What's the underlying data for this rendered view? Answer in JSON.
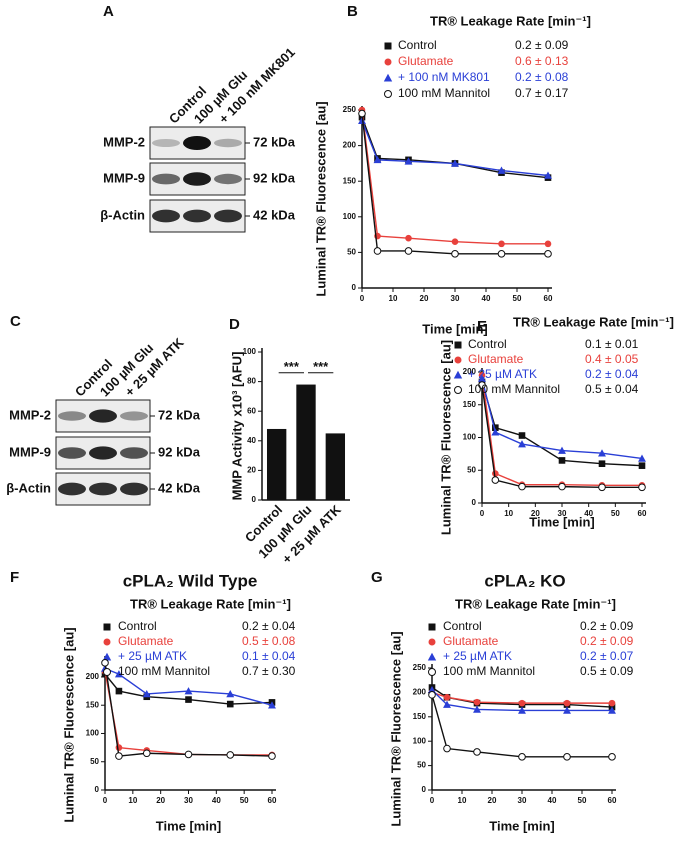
{
  "panels": [
    "A",
    "B",
    "C",
    "D",
    "E",
    "F",
    "G"
  ],
  "blots": [
    {
      "lanes": [
        "Control",
        "100 µM Glu",
        "+ 100 nM MK801"
      ],
      "rows": [
        {
          "label": "MMP-2",
          "size": "72 kDa"
        },
        {
          "label": "MMP-9",
          "size": "92 kDa"
        },
        {
          "label": "β-Actin",
          "size": "42 kDa"
        }
      ]
    },
    {
      "lanes": [
        "Control",
        "100 µM Glu",
        "+ 25 µM ATK"
      ],
      "rows": [
        {
          "label": "MMP-2",
          "size": "72 kDa"
        },
        {
          "label": "MMP-9",
          "size": "92 kDa"
        },
        {
          "label": "β-Actin",
          "size": "42 kDa"
        }
      ]
    }
  ],
  "chart_data": [
    {
      "type": "line",
      "legend_title": "TR® Leakage Rate [min⁻¹]",
      "x_label": "Time [min]",
      "y_label": "Luminal TR® Fluorescence [au]",
      "x": [
        0,
        5,
        15,
        30,
        45,
        60
      ],
      "xlim": [
        0,
        60
      ],
      "xticks": [
        0,
        10,
        20,
        30,
        40,
        50,
        60
      ],
      "ylim": [
        0,
        250
      ],
      "yticks": [
        0,
        50,
        100,
        150,
        200,
        250
      ],
      "series": [
        {
          "name": "Control",
          "rate": "0.2 ± 0.09",
          "color": "#111111",
          "marker": "square",
          "values": [
            240,
            182,
            180,
            175,
            162,
            155
          ]
        },
        {
          "name": "Glutamate",
          "rate": "0.6 ± 0.13",
          "color": "#e8413c",
          "marker": "circle",
          "values": [
            250,
            73,
            70,
            65,
            62,
            62
          ]
        },
        {
          "name": "+ 100 nM MK801",
          "rate": "0.2 ± 0.08",
          "color": "#2a3fd6",
          "marker": "triangle",
          "values": [
            235,
            180,
            178,
            175,
            165,
            158
          ]
        },
        {
          "name": "100 mM Mannitol",
          "rate": "0.7 ± 0.17",
          "color": "#111111",
          "marker": "open-circle",
          "values": [
            245,
            52,
            52,
            48,
            48,
            48
          ]
        }
      ]
    },
    {
      "type": "bar",
      "y_label": "MMP Activity x10³ [AFU]",
      "categories": [
        "Control",
        "100 µM Glu",
        "+ 25 µM ATK"
      ],
      "values": [
        48,
        78,
        45
      ],
      "color": "#111111",
      "ylim": [
        0,
        100
      ],
      "yticks": [
        0,
        20,
        40,
        60,
        80,
        100
      ],
      "annotations": [
        "***",
        "***"
      ]
    },
    {
      "type": "line",
      "legend_title": "TR® Leakage Rate [min⁻¹]",
      "x_label": "Time [min]",
      "y_label": "Luminal TR® Fluorescence [au]",
      "x": [
        0,
        5,
        15,
        30,
        45,
        60
      ],
      "xlim": [
        0,
        60
      ],
      "xticks": [
        0,
        10,
        20,
        30,
        40,
        50,
        60
      ],
      "ylim": [
        0,
        200
      ],
      "yticks": [
        0,
        50,
        100,
        150,
        200
      ],
      "series": [
        {
          "name": "Control",
          "rate": "0.1 ± 0.01",
          "color": "#111111",
          "marker": "square",
          "values": [
            185,
            115,
            103,
            65,
            60,
            57
          ]
        },
        {
          "name": "Glutamate",
          "rate": "0.4 ± 0.05",
          "color": "#e8413c",
          "marker": "circle",
          "values": [
            195,
            45,
            28,
            28,
            27,
            27
          ]
        },
        {
          "name": "+ 25 µM ATK",
          "rate": "0.2 ± 0.04",
          "color": "#2a3fd6",
          "marker": "triangle",
          "values": [
            190,
            108,
            90,
            80,
            76,
            68
          ]
        },
        {
          "name": "100 mM Mannitol",
          "rate": "0.5 ± 0.04",
          "color": "#111111",
          "marker": "open-circle",
          "values": [
            180,
            35,
            25,
            25,
            24,
            24
          ]
        }
      ]
    },
    {
      "type": "line",
      "title": "cPLA₂ Wild Type",
      "legend_title": "TR® Leakage Rate [min⁻¹]",
      "x_label": "Time [min]",
      "y_label": "Luminal TR® Fluorescence [au]",
      "x": [
        0,
        5,
        15,
        30,
        45,
        60
      ],
      "xlim": [
        0,
        60
      ],
      "xticks": [
        0,
        10,
        20,
        30,
        40,
        50,
        60
      ],
      "ylim": [
        0,
        230
      ],
      "yticks": [
        0,
        50,
        100,
        150,
        200
      ],
      "series": [
        {
          "name": "Control",
          "rate": "0.2 ± 0.04",
          "color": "#111111",
          "marker": "square",
          "values": [
            205,
            175,
            165,
            160,
            152,
            155
          ]
        },
        {
          "name": "Glutamate",
          "rate": "0.5 ± 0.08",
          "color": "#e8413c",
          "marker": "circle",
          "values": [
            210,
            75,
            70,
            63,
            62,
            62
          ]
        },
        {
          "name": "+ 25 µM ATK",
          "rate": "0.1 ± 0.04",
          "color": "#2a3fd6",
          "marker": "triangle",
          "values": [
            215,
            205,
            170,
            175,
            170,
            150
          ]
        },
        {
          "name": "100 mM Mannitol",
          "rate": "0.7 ± 0.30",
          "color": "#111111",
          "marker": "open-circle",
          "values": [
            225,
            60,
            65,
            63,
            62,
            60
          ]
        }
      ]
    },
    {
      "type": "line",
      "title": "cPLA₂ KO",
      "legend_title": "TR® Leakage Rate [min⁻¹]",
      "x_label": "Time [min]",
      "y_label": "Luminal TR® Fluorescence [au]",
      "x": [
        0,
        5,
        15,
        30,
        45,
        60
      ],
      "xlim": [
        0,
        60
      ],
      "xticks": [
        0,
        10,
        20,
        30,
        40,
        50,
        60
      ],
      "ylim": [
        0,
        250
      ],
      "yticks": [
        0,
        50,
        100,
        150,
        200,
        250
      ],
      "series": [
        {
          "name": "Control",
          "rate": "0.2 ± 0.09",
          "color": "#111111",
          "marker": "square",
          "values": [
            210,
            190,
            178,
            175,
            175,
            170
          ]
        },
        {
          "name": "Glutamate",
          "rate": "0.2 ± 0.09",
          "color": "#e8413c",
          "marker": "circle",
          "values": [
            200,
            190,
            180,
            178,
            178,
            178
          ]
        },
        {
          "name": "+ 25 µM ATK",
          "rate": "0.2 ± 0.07",
          "color": "#2a3fd6",
          "marker": "triangle",
          "values": [
            205,
            175,
            165,
            163,
            163,
            163
          ]
        },
        {
          "name": "100 mM Mannitol",
          "rate": "0.5 ± 0.09",
          "color": "#111111",
          "marker": "open-circle",
          "values": [
            195,
            85,
            78,
            68,
            68,
            68
          ]
        }
      ]
    }
  ]
}
